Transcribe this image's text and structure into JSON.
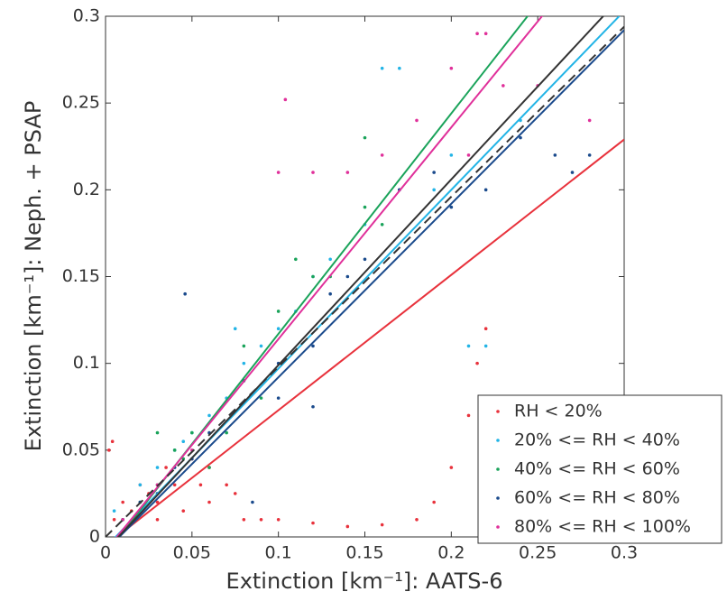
{
  "chart_data": {
    "type": "scatter",
    "x_label": "Extinction [km⁻¹]: AATS-6",
    "y_label": "Extinction [km⁻¹]: Neph. + PSAP",
    "xlim": [
      0,
      0.3
    ],
    "ylim": [
      0,
      0.3
    ],
    "xticks": [
      0,
      0.05,
      0.1,
      0.15,
      0.2,
      0.25,
      0.3
    ],
    "yticks": [
      0,
      0.05,
      0.1,
      0.15,
      0.2,
      0.25,
      0.3
    ],
    "legend": "lower right",
    "series": [
      {
        "name": "RH < 20%",
        "color": "#e8323c",
        "x": [
          0.005,
          0.01,
          0.015,
          0.02,
          0.025,
          0.03,
          0.035,
          0.04,
          0.045,
          0.05,
          0.055,
          0.06,
          0.07,
          0.075,
          0.08,
          0.09,
          0.1,
          0.12,
          0.14,
          0.16,
          0.18,
          0.19,
          0.2,
          0.21,
          0.215,
          0.22,
          0.002,
          0.004,
          0.03,
          0.06
        ],
        "values": [
          0.01,
          0.02,
          0.015,
          0.03,
          0.025,
          0.02,
          0.04,
          0.03,
          0.015,
          0.045,
          0.03,
          0.02,
          0.03,
          0.025,
          0.01,
          0.01,
          0.01,
          0.008,
          0.006,
          0.007,
          0.01,
          0.02,
          0.04,
          0.07,
          0.1,
          0.12,
          0.05,
          0.055,
          0.01,
          0.04
        ]
      },
      {
        "name": "20% <= RH < 40%",
        "color": "#22b4e6",
        "x": [
          0.01,
          0.02,
          0.03,
          0.04,
          0.05,
          0.06,
          0.07,
          0.08,
          0.09,
          0.1,
          0.11,
          0.12,
          0.13,
          0.15,
          0.17,
          0.19,
          0.2,
          0.21,
          0.22,
          0.16,
          0.17,
          0.24,
          0.005,
          0.045,
          0.075
        ],
        "values": [
          0.01,
          0.03,
          0.04,
          0.05,
          0.06,
          0.07,
          0.08,
          0.1,
          0.11,
          0.12,
          0.13,
          0.15,
          0.16,
          0.18,
          0.2,
          0.2,
          0.22,
          0.11,
          0.11,
          0.27,
          0.27,
          0.24,
          0.015,
          0.055,
          0.12
        ]
      },
      {
        "name": "40% <= RH < 60%",
        "color": "#1aa35a",
        "x": [
          0.01,
          0.02,
          0.03,
          0.04,
          0.05,
          0.06,
          0.07,
          0.08,
          0.1,
          0.11,
          0.12,
          0.13,
          0.15,
          0.15,
          0.16,
          0.08,
          0.09,
          0.03,
          0.045
        ],
        "values": [
          0.01,
          0.02,
          0.03,
          0.05,
          0.06,
          0.04,
          0.06,
          0.11,
          0.13,
          0.16,
          0.15,
          0.15,
          0.23,
          0.19,
          0.18,
          0.09,
          0.08,
          0.06,
          0.045
        ]
      },
      {
        "name": "60% <= RH < 80%",
        "color": "#1a4a8c",
        "x": [
          0.01,
          0.02,
          0.03,
          0.04,
          0.05,
          0.06,
          0.08,
          0.1,
          0.12,
          0.13,
          0.14,
          0.15,
          0.17,
          0.19,
          0.2,
          0.22,
          0.24,
          0.26,
          0.27,
          0.28,
          0.046,
          0.085,
          0.1,
          0.12
        ],
        "values": [
          0.01,
          0.02,
          0.025,
          0.04,
          0.045,
          0.06,
          0.09,
          0.1,
          0.11,
          0.14,
          0.15,
          0.16,
          0.2,
          0.21,
          0.19,
          0.2,
          0.23,
          0.22,
          0.21,
          0.22,
          0.14,
          0.02,
          0.08,
          0.075
        ]
      },
      {
        "name": "80% <= RH < 100%",
        "color": "#e0309a",
        "x": [
          0.01,
          0.03,
          0.05,
          0.104,
          0.12,
          0.14,
          0.16,
          0.18,
          0.2,
          0.21,
          0.22,
          0.23,
          0.25,
          0.28,
          0.215,
          0.1
        ],
        "values": [
          0.01,
          0.03,
          0.05,
          0.252,
          0.21,
          0.21,
          0.22,
          0.24,
          0.27,
          0.22,
          0.29,
          0.26,
          0.26,
          0.24,
          0.29,
          0.21
        ]
      }
    ],
    "fit_lines": [
      {
        "color": "#e8323c",
        "slope": 0.78,
        "intercept": -0.005
      },
      {
        "color": "#22b4e6",
        "slope": 1.03,
        "intercept": -0.006
      },
      {
        "color": "#1aa35a",
        "slope": 1.27,
        "intercept": -0.01
      },
      {
        "color": "#1a4a8c",
        "slope": 1.0,
        "intercept": -0.008
      },
      {
        "color": "#e0309a",
        "slope": 1.22,
        "intercept": -0.008
      },
      {
        "color": "#333333",
        "slope": 1.07,
        "intercept": -0.008
      },
      {
        "color": "#333333",
        "slope": 0.98,
        "intercept": 0,
        "dashed": true
      }
    ]
  }
}
